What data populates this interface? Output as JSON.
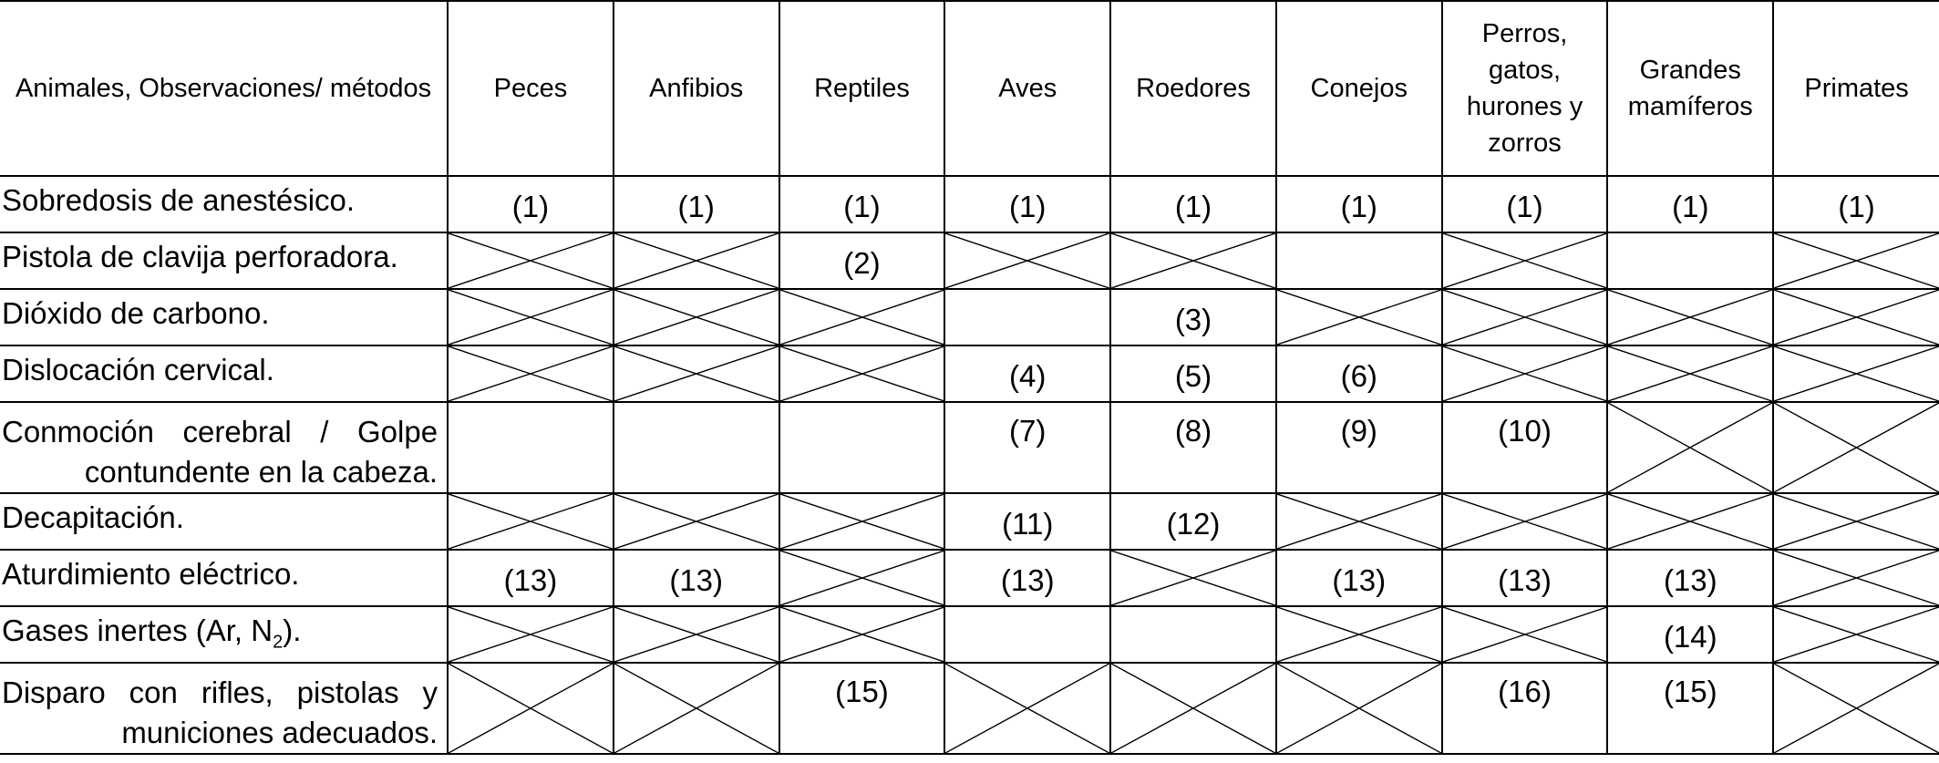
{
  "header": {
    "methods_label": "Animales, Observaciones/ métodos",
    "animals": [
      "Peces",
      "Anfibios",
      "Reptiles",
      "Aves",
      "Roedores",
      "Conejos",
      "Perros, gatos, hurones y zorros",
      "Grandes mamíferos",
      "Primates"
    ]
  },
  "rows": [
    {
      "method": "Sobredosis de anestésico.",
      "cells": [
        "(1)",
        "(1)",
        "(1)",
        "(1)",
        "(1)",
        "(1)",
        "(1)",
        "(1)",
        "(1)"
      ]
    },
    {
      "method": "Pistola de clavija perforadora.",
      "cells": [
        "X",
        "X",
        "(2)",
        "X",
        "X",
        "",
        "X",
        "",
        "X"
      ]
    },
    {
      "method": "Dióxido de carbono.",
      "cells": [
        "X",
        "X",
        "X",
        "",
        "(3)",
        "X",
        "X",
        "X",
        "X"
      ]
    },
    {
      "method": "Dislocación cervical.",
      "cells": [
        "X",
        "X",
        "X",
        "(4)",
        "(5)",
        "(6)",
        "X",
        "X",
        "X"
      ]
    },
    {
      "method": "Conmoción cerebral / Golpe contundente en la cabeza.",
      "cells": [
        "",
        "",
        "",
        "(7)",
        "(8)",
        "(9)",
        "(10)",
        "X",
        "X"
      ]
    },
    {
      "method": "Decapitación.",
      "cells": [
        "X",
        "X",
        "X",
        "(11)",
        "(12)",
        "X",
        "X",
        "X",
        "X"
      ]
    },
    {
      "method": "Aturdimiento eléctrico.",
      "cells": [
        "(13)",
        "(13)",
        "X",
        "(13)",
        "X",
        "(13)",
        "(13)",
        "(13)",
        "X"
      ]
    },
    {
      "method": "Gases inertes (Ar, N2).",
      "cells": [
        "X",
        "X",
        "X",
        "",
        "",
        "X",
        "X",
        "(14)",
        "X"
      ]
    },
    {
      "method": "Disparo con rifles, pistolas y municiones adecuados.",
      "cells": [
        "X",
        "X",
        "(15)",
        "X",
        "X",
        "X",
        "(16)",
        "(15)",
        "X"
      ]
    }
  ]
}
